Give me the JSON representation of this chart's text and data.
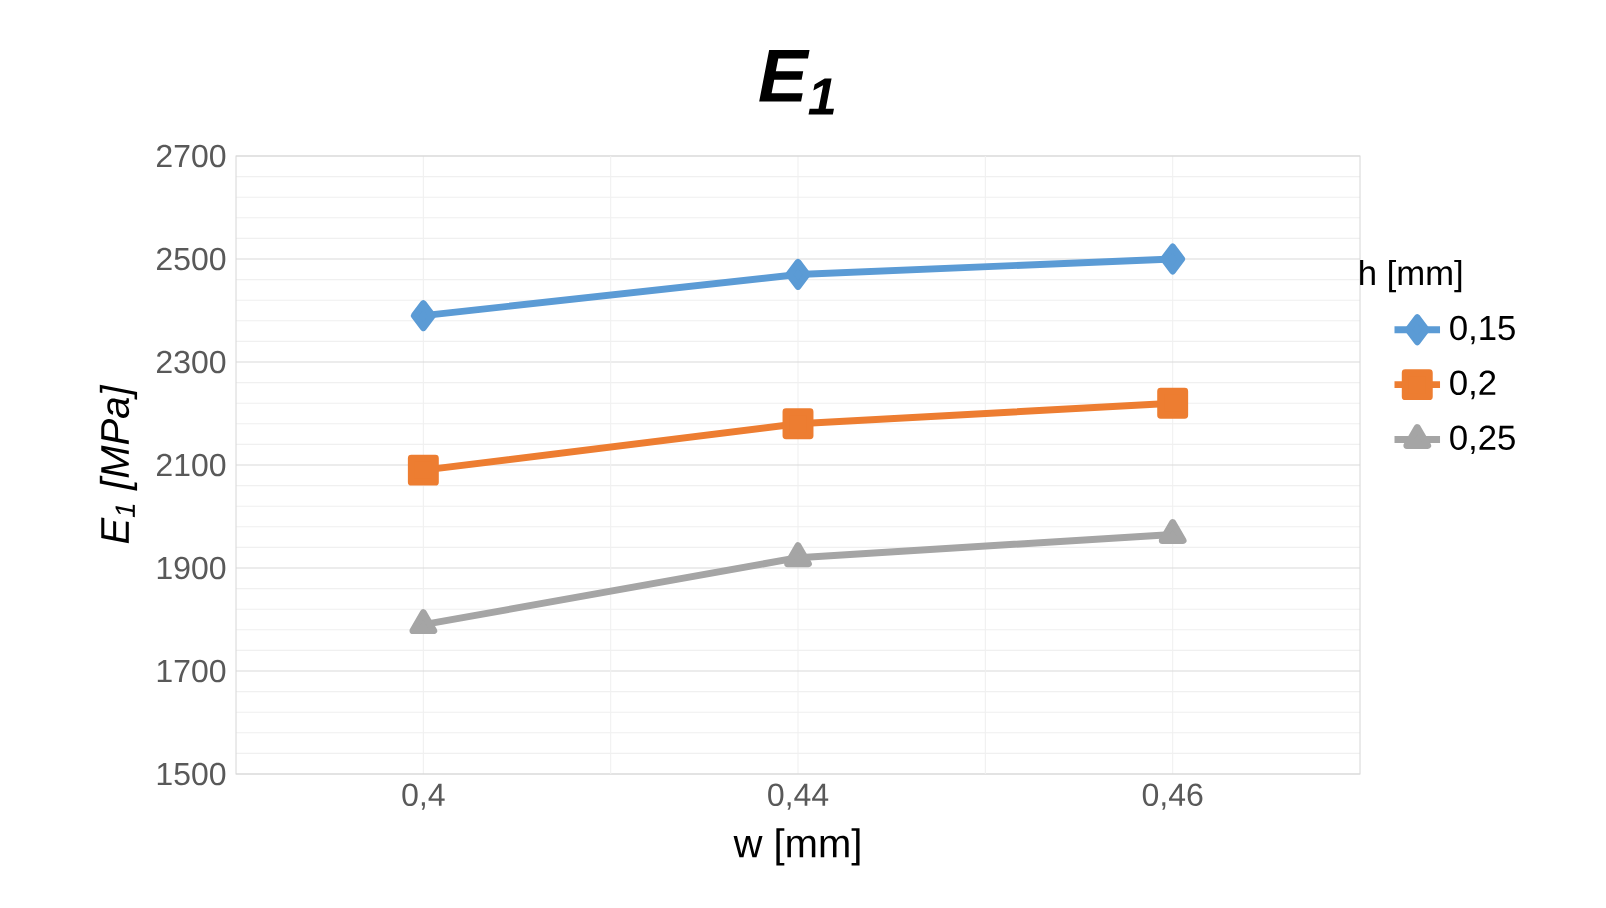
{
  "chart_data": {
    "type": "line",
    "title": "E$_{1}$",
    "xlabel": "w [mm]",
    "ylabel": "E$_{1}$ [MPa]",
    "legend_title": "h [mm]",
    "categories": [
      "0,4",
      "0,44",
      "0,46"
    ],
    "series": [
      {
        "name": "0,15",
        "color": "#5b9bd5",
        "marker": "diamond",
        "values": [
          2390,
          2470,
          2500
        ]
      },
      {
        "name": "0,2",
        "color": "#ed7d31",
        "marker": "square",
        "values": [
          2090,
          2180,
          2220
        ]
      },
      {
        "name": "0,25",
        "color": "#a5a5a5",
        "marker": "triangle",
        "values": [
          1790,
          1920,
          1965
        ]
      }
    ],
    "ylim": [
      1500,
      2700
    ],
    "yticks": [
      1500,
      1700,
      1900,
      2100,
      2300,
      2500,
      2700
    ],
    "grid": true,
    "legend": "right",
    "line_style": "solid"
  }
}
